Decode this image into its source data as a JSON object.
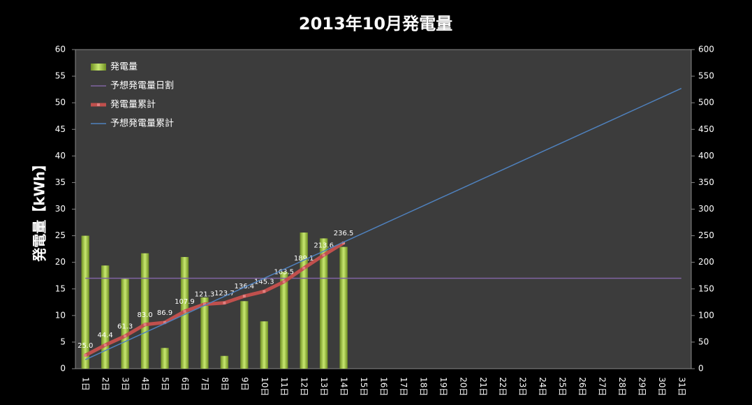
{
  "chart_data": {
    "type": "combo",
    "title": "2013年10月発電量",
    "y_label": "発電量【kWh】",
    "categories": [
      "1日",
      "2日",
      "3日",
      "4日",
      "5日",
      "6日",
      "7日",
      "8日",
      "9日",
      "10日",
      "11日",
      "12日",
      "13日",
      "14日",
      "15日",
      "16日",
      "17日",
      "18日",
      "19日",
      "20日",
      "21日",
      "22日",
      "23日",
      "24日",
      "25日",
      "26日",
      "27日",
      "28日",
      "29日",
      "30日",
      "31日"
    ],
    "ylim": [
      0,
      60
    ],
    "yticks": [
      0,
      5,
      10,
      15,
      20,
      25,
      30,
      35,
      40,
      45,
      50,
      55,
      60
    ],
    "y2lim": [
      0,
      600
    ],
    "y2ticks": [
      0,
      50,
      100,
      150,
      200,
      250,
      300,
      350,
      400,
      450,
      500,
      550,
      600
    ],
    "legend": "upper left",
    "series": [
      {
        "name": "発電量",
        "type": "bar",
        "color": "#9bc43a",
        "values": [
          25.0,
          19.4,
          16.9,
          21.7,
          3.9,
          21.0,
          13.4,
          2.4,
          12.7,
          8.9,
          18.2,
          25.6,
          24.5,
          22.9,
          null,
          null,
          null,
          null,
          null,
          null,
          null,
          null,
          null,
          null,
          null,
          null,
          null,
          null,
          null,
          null,
          null
        ]
      },
      {
        "name": "予想発電量日割",
        "type": "line",
        "color": "#8064a2",
        "values": [
          17,
          17,
          17,
          17,
          17,
          17,
          17,
          17,
          17,
          17,
          17,
          17,
          17,
          17,
          17,
          17,
          17,
          17,
          17,
          17,
          17,
          17,
          17,
          17,
          17,
          17,
          17,
          17,
          17,
          17,
          17
        ]
      },
      {
        "name": "発電量累計",
        "type": "line",
        "axis": "y2",
        "color": "#c0504d",
        "markers": true,
        "values": [
          25.0,
          44.4,
          61.3,
          83.0,
          86.9,
          107.9,
          121.3,
          123.7,
          136.4,
          145.3,
          163.5,
          189.1,
          213.6,
          236.5,
          null,
          null,
          null,
          null,
          null,
          null,
          null,
          null,
          null,
          null,
          null,
          null,
          null,
          null,
          null,
          null,
          null
        ],
        "value_labels": [
          "25.0",
          "44.4",
          "61.3",
          "83.0",
          "86.9",
          "107.9",
          "121.3",
          "123.7",
          "136.4",
          "145.3",
          "163.5",
          "189.1",
          "213.6",
          "236.5",
          null,
          null,
          null,
          null,
          null,
          null,
          null,
          null,
          null,
          null,
          null,
          null,
          null,
          null,
          null,
          null,
          null
        ]
      },
      {
        "name": "予想発電量累計",
        "type": "line",
        "axis": "y2",
        "color": "#4f81bd",
        "values": [
          17,
          34,
          51,
          68,
          85,
          102,
          119,
          136,
          153,
          170,
          187,
          204,
          221,
          238,
          255,
          272,
          289,
          306,
          323,
          340,
          357,
          374,
          391,
          408,
          425,
          442,
          459,
          476,
          493,
          510,
          527
        ]
      }
    ]
  }
}
